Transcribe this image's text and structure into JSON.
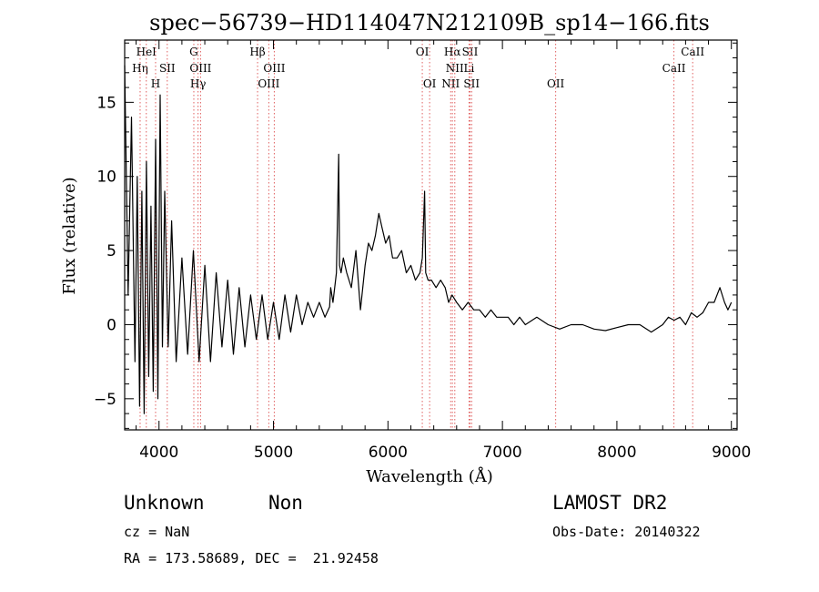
{
  "chart_data": {
    "type": "line",
    "title": "spec−56739−HD114047N212109B_sp14−166.fits",
    "xlabel": "Wavelength (Å)",
    "ylabel": "Flux (relative)",
    "xlim": [
      3700,
      9050
    ],
    "ylim": [
      -7.1,
      19.2
    ],
    "xticks": [
      4000,
      5000,
      6000,
      7000,
      8000,
      9000
    ],
    "yticks": [
      -5,
      0,
      5,
      10,
      15
    ],
    "xtick_labels": [
      "4000",
      "5000",
      "6000",
      "7000",
      "8000",
      "9000"
    ],
    "ytick_labels": [
      "−5",
      "0",
      "5",
      "10",
      "15"
    ],
    "grid": false,
    "series": [
      {
        "x": [
          3700,
          3730,
          3760,
          3790,
          3810,
          3830,
          3850,
          3870,
          3890,
          3910,
          3930,
          3950,
          3970,
          3990,
          4010,
          4030,
          4050,
          4080,
          4110,
          4150,
          4200,
          4250,
          4300,
          4350,
          4400,
          4450,
          4500,
          4550,
          4600,
          4650,
          4700,
          4750,
          4800,
          4850,
          4900,
          4950,
          5000,
          5050,
          5100,
          5150,
          5200,
          5250,
          5300,
          5350,
          5400,
          5450,
          5490,
          5500,
          5520,
          5550,
          5570,
          5577,
          5590,
          5610,
          5640,
          5680,
          5720,
          5760,
          5800,
          5830,
          5860,
          5890,
          5920,
          5950,
          5980,
          6010,
          6040,
          6080,
          6120,
          6160,
          6200,
          6240,
          6280,
          6300,
          6320,
          6330,
          6350,
          6380,
          6420,
          6460,
          6500,
          6530,
          6560,
          6600,
          6650,
          6700,
          6750,
          6800,
          6850,
          6900,
          6950,
          7000,
          7050,
          7100,
          7150,
          7200,
          7300,
          7400,
          7500,
          7600,
          7700,
          7800,
          7900,
          8000,
          8100,
          8200,
          8300,
          8400,
          8450,
          8500,
          8550,
          8600,
          8650,
          8700,
          8750,
          8800,
          8850,
          8900,
          8940,
          8970,
          9000
        ],
        "y": [
          17.5,
          2.0,
          14.0,
          -2.5,
          10.0,
          -5.5,
          9.0,
          -6.0,
          11.0,
          -3.5,
          8.0,
          -4.5,
          12.5,
          -5.0,
          15.5,
          -1.5,
          9.0,
          -1.5,
          7.0,
          -2.5,
          4.5,
          -2.0,
          5.0,
          -2.5,
          4.0,
          -2.5,
          3.5,
          -1.5,
          3.0,
          -2.0,
          2.5,
          -1.5,
          2.0,
          -1.0,
          2.0,
          -1.0,
          1.5,
          -1.0,
          2.0,
          -0.5,
          2.0,
          0.0,
          1.5,
          0.5,
          1.5,
          0.5,
          1.2,
          2.5,
          1.5,
          3.5,
          11.5,
          4.0,
          3.5,
          4.5,
          3.5,
          2.5,
          5.0,
          1.0,
          4.0,
          5.5,
          5.0,
          6.0,
          7.5,
          6.5,
          5.5,
          6.0,
          4.5,
          4.5,
          5.0,
          3.5,
          4.0,
          3.0,
          3.5,
          4.5,
          9.0,
          3.5,
          3.0,
          3.0,
          2.5,
          3.0,
          2.5,
          1.5,
          2.0,
          1.5,
          1.0,
          1.5,
          1.0,
          1.0,
          0.5,
          1.0,
          0.5,
          0.5,
          0.5,
          0.0,
          0.5,
          0.0,
          0.5,
          0.0,
          -0.3,
          0.0,
          0.0,
          -0.3,
          -0.4,
          -0.2,
          0.0,
          0.0,
          -0.5,
          0.0,
          0.5,
          0.3,
          0.5,
          0.0,
          0.8,
          0.5,
          0.8,
          1.5,
          1.5,
          2.5,
          1.5,
          1.0,
          1.5
        ]
      }
    ],
    "line_markers": [
      {
        "x": 3835,
        "labels": [
          "Hη"
        ],
        "rows": [
          1
        ]
      },
      {
        "x": 3889,
        "labels": [
          "HeI"
        ],
        "rows": [
          0
        ]
      },
      {
        "x": 3970,
        "labels": [
          "H"
        ],
        "rows": [
          2
        ]
      },
      {
        "x": 4072,
        "labels": [
          "SII"
        ],
        "rows": [
          1
        ]
      },
      {
        "x": 4304,
        "labels": [
          "G"
        ],
        "rows": [
          0
        ]
      },
      {
        "x": 4341,
        "labels": [
          "Hγ"
        ],
        "rows": [
          2
        ]
      },
      {
        "x": 4363,
        "labels": [
          "OIII"
        ],
        "rows": [
          1
        ]
      },
      {
        "x": 4861,
        "labels": [
          "Hβ"
        ],
        "rows": [
          0
        ]
      },
      {
        "x": 4959,
        "labels": [
          "OIII"
        ],
        "rows": [
          2
        ]
      },
      {
        "x": 5007,
        "labels": [
          "OIII"
        ],
        "rows": [
          1
        ]
      },
      {
        "x": 6300,
        "labels": [
          "OI"
        ],
        "rows": [
          0
        ]
      },
      {
        "x": 6364,
        "labels": [
          "OI"
        ],
        "rows": [
          2
        ]
      },
      {
        "x": 6548,
        "labels": [
          "NII"
        ],
        "rows": [
          2
        ]
      },
      {
        "x": 6563,
        "labels": [
          "Hα"
        ],
        "rows": [
          0
        ]
      },
      {
        "x": 6584,
        "labels": [
          "NII"
        ],
        "rows": [
          1
        ]
      },
      {
        "x": 6708,
        "labels": [
          "Li"
        ],
        "rows": [
          1
        ]
      },
      {
        "x": 6717,
        "labels": [
          "SII"
        ],
        "rows": [
          0
        ]
      },
      {
        "x": 6731,
        "labels": [
          "SII"
        ],
        "rows": [
          2
        ]
      },
      {
        "x": 7465,
        "labels": [
          "OII"
        ],
        "rows": [
          2
        ]
      },
      {
        "x": 8498,
        "labels": [
          "CaII"
        ],
        "rows": [
          1
        ]
      },
      {
        "x": 8662,
        "labels": [
          "CaII"
        ],
        "rows": [
          0
        ]
      }
    ]
  },
  "footer": {
    "class_label": "Unknown",
    "subclass_label": "Non",
    "cz": "cz = NaN",
    "radec": "RA = 173.58689, DEC =  21.92458",
    "survey": "LAMOST DR2",
    "obs_date": "Obs-Date: 20140322"
  },
  "colors": {
    "spectrum": "#000000",
    "marker_lines": "#e06060",
    "axes": "#000000"
  }
}
